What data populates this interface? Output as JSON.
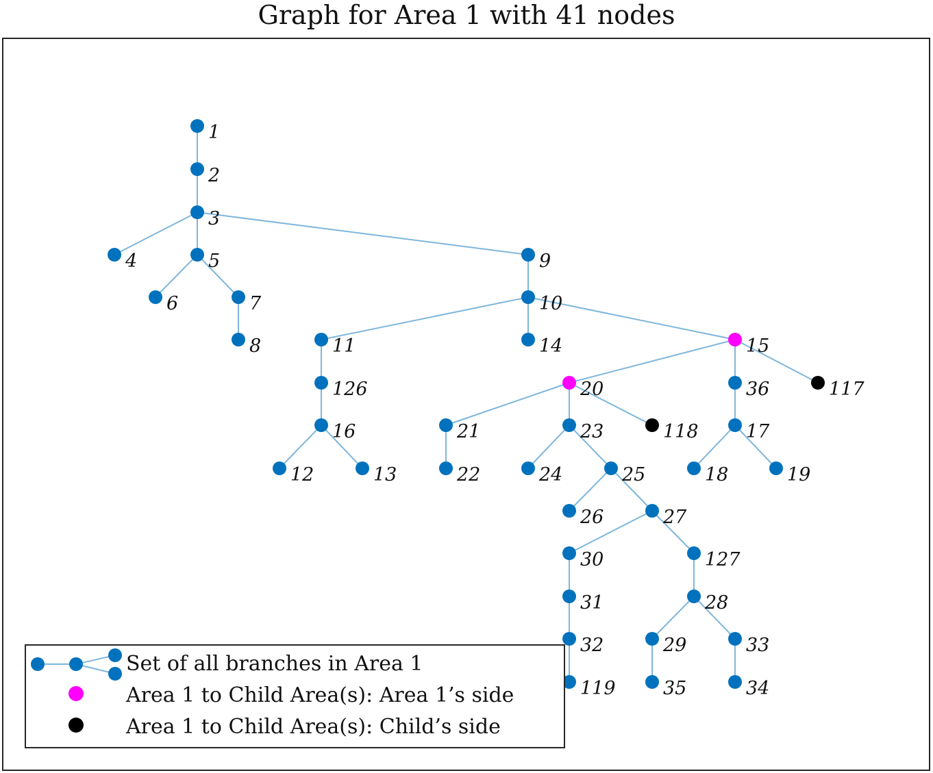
{
  "title": "Graph for Area 1 with 41 nodes",
  "colors": {
    "node": "#0072BD",
    "edge": "#7EB6DC",
    "boundary_parent_side": "#FF00FF",
    "boundary_child_side": "#000000",
    "frame": "#262626"
  },
  "nodes": [
    {
      "id": "1",
      "type": "normal"
    },
    {
      "id": "2",
      "type": "normal"
    },
    {
      "id": "3",
      "type": "normal"
    },
    {
      "id": "4",
      "type": "normal"
    },
    {
      "id": "5",
      "type": "normal"
    },
    {
      "id": "6",
      "type": "normal"
    },
    {
      "id": "7",
      "type": "normal"
    },
    {
      "id": "8",
      "type": "normal"
    },
    {
      "id": "9",
      "type": "normal"
    },
    {
      "id": "10",
      "type": "normal"
    },
    {
      "id": "11",
      "type": "normal"
    },
    {
      "id": "14",
      "type": "normal"
    },
    {
      "id": "15",
      "type": "parent_side"
    },
    {
      "id": "126",
      "type": "normal"
    },
    {
      "id": "16",
      "type": "normal"
    },
    {
      "id": "12",
      "type": "normal"
    },
    {
      "id": "13",
      "type": "normal"
    },
    {
      "id": "20",
      "type": "parent_side"
    },
    {
      "id": "36",
      "type": "normal"
    },
    {
      "id": "117",
      "type": "child_side"
    },
    {
      "id": "21",
      "type": "normal"
    },
    {
      "id": "22",
      "type": "normal"
    },
    {
      "id": "23",
      "type": "normal"
    },
    {
      "id": "118",
      "type": "child_side"
    },
    {
      "id": "24",
      "type": "normal"
    },
    {
      "id": "25",
      "type": "normal"
    },
    {
      "id": "26",
      "type": "normal"
    },
    {
      "id": "27",
      "type": "normal"
    },
    {
      "id": "30",
      "type": "normal"
    },
    {
      "id": "127",
      "type": "normal"
    },
    {
      "id": "31",
      "type": "normal"
    },
    {
      "id": "32",
      "type": "normal"
    },
    {
      "id": "119",
      "type": "normal"
    },
    {
      "id": "28",
      "type": "normal"
    },
    {
      "id": "29",
      "type": "normal"
    },
    {
      "id": "33",
      "type": "normal"
    },
    {
      "id": "35",
      "type": "normal"
    },
    {
      "id": "34",
      "type": "normal"
    },
    {
      "id": "17",
      "type": "normal"
    },
    {
      "id": "18",
      "type": "normal"
    },
    {
      "id": "19",
      "type": "normal"
    }
  ],
  "edges": [
    [
      "1",
      "2"
    ],
    [
      "2",
      "3"
    ],
    [
      "3",
      "4"
    ],
    [
      "3",
      "5"
    ],
    [
      "3",
      "9"
    ],
    [
      "5",
      "6"
    ],
    [
      "5",
      "7"
    ],
    [
      "7",
      "8"
    ],
    [
      "9",
      "10"
    ],
    [
      "10",
      "11"
    ],
    [
      "10",
      "14"
    ],
    [
      "10",
      "15"
    ],
    [
      "11",
      "126"
    ],
    [
      "126",
      "16"
    ],
    [
      "16",
      "12"
    ],
    [
      "16",
      "13"
    ],
    [
      "15",
      "20"
    ],
    [
      "15",
      "36"
    ],
    [
      "15",
      "117"
    ],
    [
      "20",
      "21"
    ],
    [
      "20",
      "23"
    ],
    [
      "20",
      "118"
    ],
    [
      "21",
      "22"
    ],
    [
      "23",
      "24"
    ],
    [
      "23",
      "25"
    ],
    [
      "25",
      "26"
    ],
    [
      "25",
      "27"
    ],
    [
      "27",
      "30"
    ],
    [
      "27",
      "127"
    ],
    [
      "30",
      "31"
    ],
    [
      "31",
      "32"
    ],
    [
      "32",
      "119"
    ],
    [
      "127",
      "28"
    ],
    [
      "28",
      "29"
    ],
    [
      "28",
      "33"
    ],
    [
      "29",
      "35"
    ],
    [
      "33",
      "34"
    ],
    [
      "36",
      "17"
    ],
    [
      "17",
      "18"
    ],
    [
      "17",
      "19"
    ]
  ],
  "legend": {
    "items": [
      {
        "label": "Set of all branches in Area 1",
        "marker": "branches"
      },
      {
        "label": "Area 1 to Child Area(s): Area 1’s side",
        "marker": "parent_side"
      },
      {
        "label": "Area 1 to Child Area(s): Child’s side",
        "marker": "child_side"
      }
    ]
  }
}
